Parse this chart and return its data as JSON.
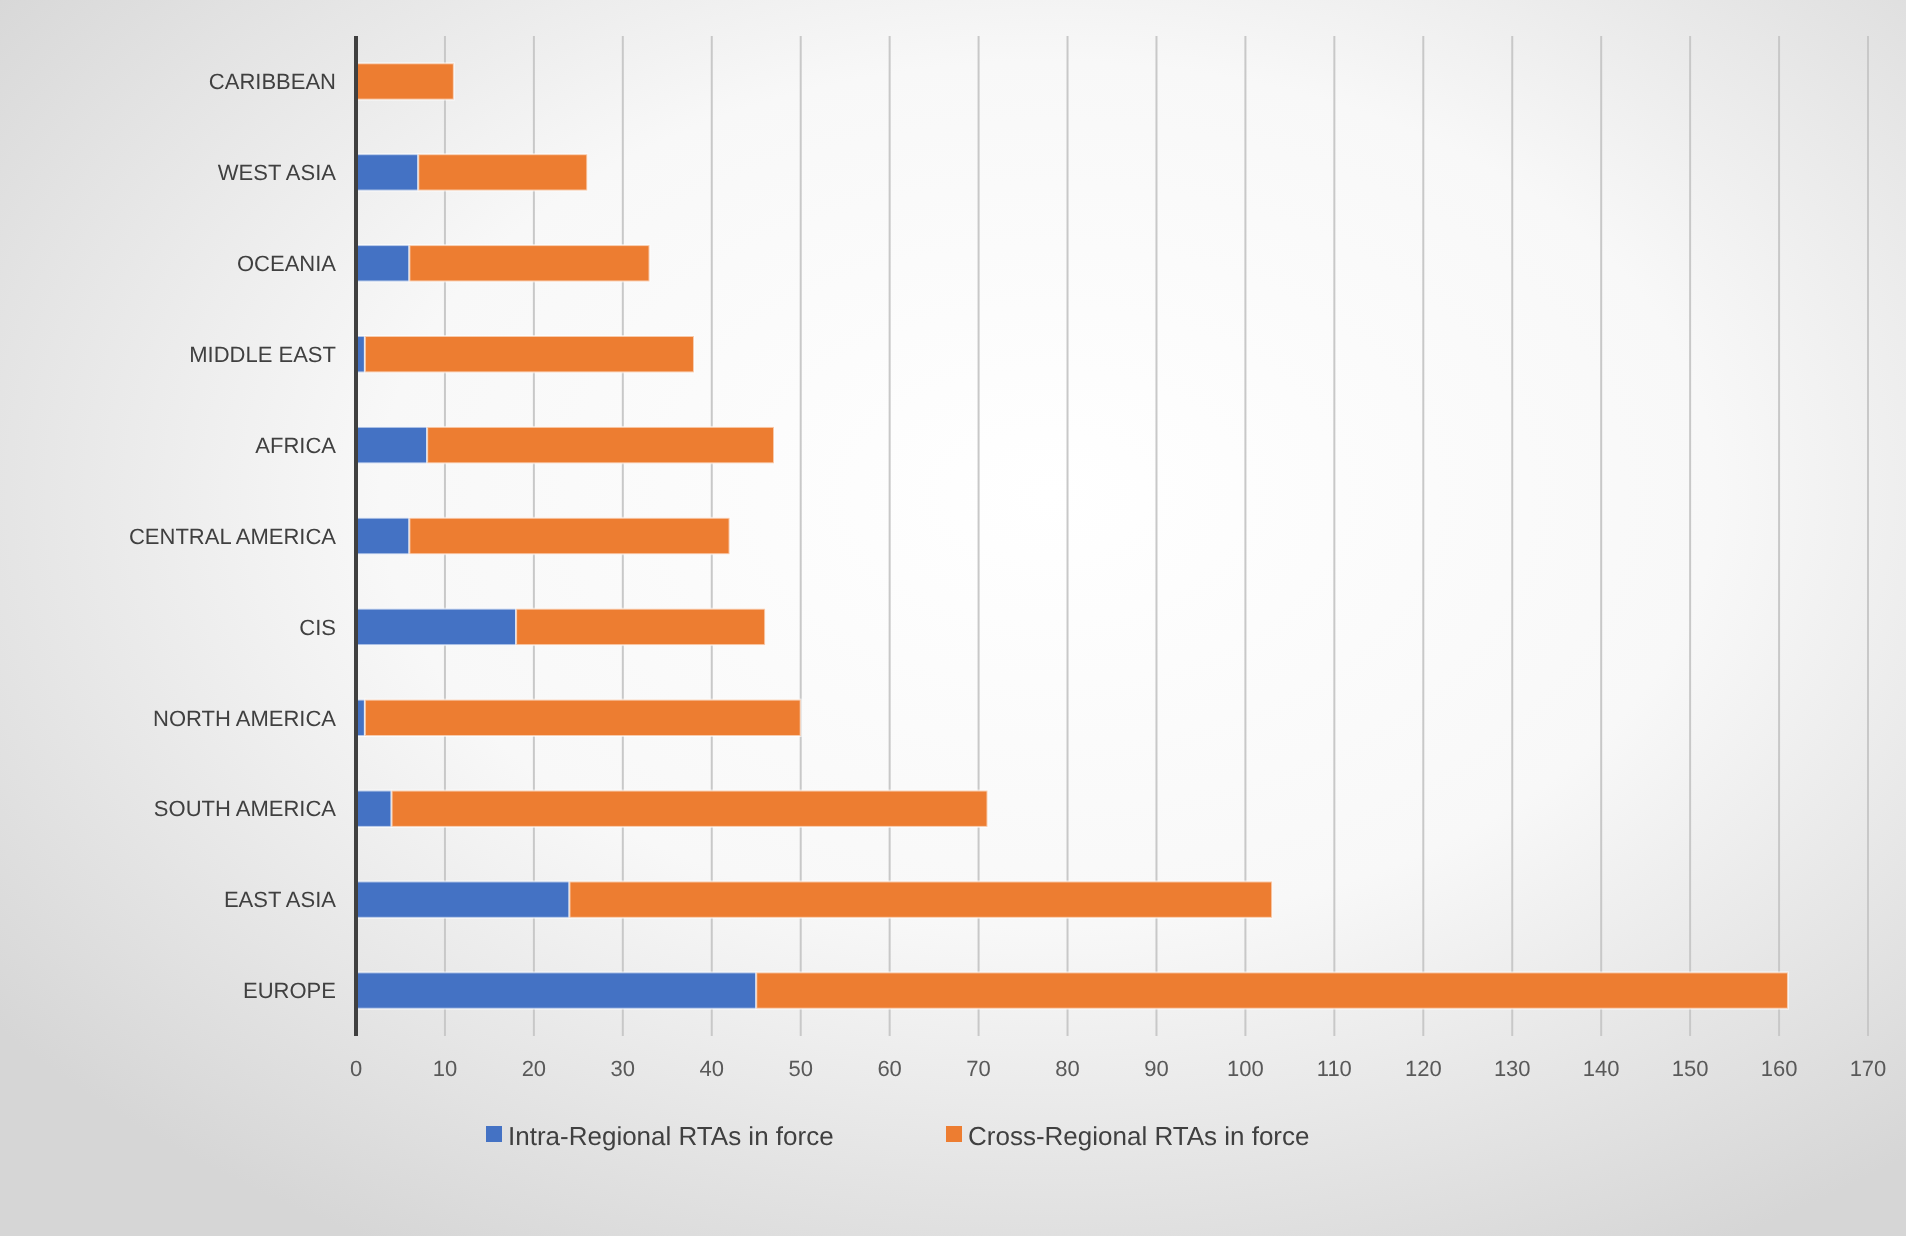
{
  "chart_data": {
    "type": "bar",
    "orientation": "horizontal",
    "stacked": true,
    "categories": [
      "CARIBBEAN",
      "WEST ASIA",
      "OCEANIA",
      "MIDDLE EAST",
      "AFRICA",
      "CENTRAL AMERICA",
      "CIS",
      "NORTH AMERICA",
      "SOUTH AMERICA",
      "EAST ASIA",
      "EUROPE"
    ],
    "series": [
      {
        "name": "Intra-Regional RTAs in force",
        "color": "#4472c4",
        "values": [
          0,
          7,
          6,
          1,
          8,
          6,
          18,
          1,
          4,
          24,
          45
        ]
      },
      {
        "name": "Cross-Regional RTAs in force",
        "color": "#ed7d31",
        "values": [
          11,
          19,
          27,
          37,
          39,
          36,
          28,
          49,
          67,
          79,
          116
        ]
      }
    ],
    "xlim": [
      0,
      170
    ],
    "xticks": [
      0,
      10,
      20,
      30,
      40,
      50,
      60,
      70,
      80,
      90,
      100,
      110,
      120,
      130,
      140,
      150,
      160,
      170
    ],
    "grid": "x",
    "legend": "bottom"
  }
}
